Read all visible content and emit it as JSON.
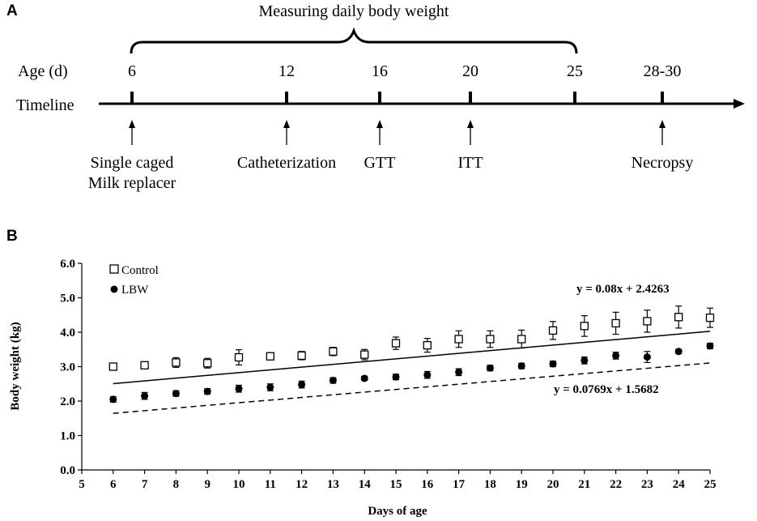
{
  "panel_a": {
    "label": "A",
    "bracket_title": "Measuring daily body weight",
    "row_age_label": "Age (d)",
    "row_timeline_label": "Timeline",
    "ages": [
      "6",
      "12",
      "16",
      "20",
      "25",
      "28-30"
    ],
    "events": [
      {
        "age": "6",
        "lines": [
          "Single caged",
          "Milk replacer"
        ]
      },
      {
        "age": "12",
        "lines": [
          "Catheterization"
        ]
      },
      {
        "age": "16",
        "lines": [
          "GTT"
        ]
      },
      {
        "age": "20",
        "lines": [
          "ITT"
        ]
      },
      {
        "age": "28-30",
        "lines": [
          "Necropsy"
        ]
      }
    ]
  },
  "chart_data": {
    "type": "scatter",
    "panel_label": "B",
    "xlabel": "Days of age",
    "ylabel": "Body weight (kg)",
    "xlim": [
      5,
      25
    ],
    "ylim": [
      0,
      6
    ],
    "xticks": [
      "5",
      "6",
      "7",
      "8",
      "9",
      "10",
      "11",
      "12",
      "13",
      "14",
      "15",
      "16",
      "17",
      "18",
      "19",
      "20",
      "21",
      "22",
      "23",
      "24",
      "25"
    ],
    "yticks": [
      "0.0",
      "1.0",
      "2.0",
      "3.0",
      "4.0",
      "5.0",
      "6.0"
    ],
    "grid": false,
    "legend_position": "top-left",
    "x": [
      6,
      7,
      8,
      9,
      10,
      11,
      12,
      13,
      14,
      15,
      16,
      17,
      18,
      19,
      20,
      21,
      22,
      23,
      24,
      25
    ],
    "series": [
      {
        "name": "Control",
        "marker": "open-square",
        "values": [
          3.0,
          3.04,
          3.12,
          3.1,
          3.27,
          3.3,
          3.32,
          3.44,
          3.35,
          3.68,
          3.62,
          3.8,
          3.8,
          3.8,
          4.05,
          4.18,
          4.26,
          4.32,
          4.44,
          4.42
        ],
        "errors": [
          0.08,
          0.1,
          0.14,
          0.14,
          0.22,
          0.1,
          0.12,
          0.12,
          0.15,
          0.18,
          0.2,
          0.24,
          0.24,
          0.26,
          0.26,
          0.3,
          0.32,
          0.32,
          0.32,
          0.28
        ],
        "fit": {
          "slope": 0.08,
          "intercept": 2.4263,
          "line": "solid",
          "label": "y = 0.08x + 2.4263"
        }
      },
      {
        "name": "LBW",
        "marker": "filled-circle",
        "values": [
          2.05,
          2.15,
          2.22,
          2.28,
          2.36,
          2.4,
          2.48,
          2.6,
          2.66,
          2.7,
          2.76,
          2.84,
          2.96,
          3.02,
          3.08,
          3.18,
          3.32,
          3.28,
          3.44,
          3.6
        ],
        "errors": [
          0.08,
          0.1,
          0.08,
          0.08,
          0.1,
          0.1,
          0.1,
          0.08,
          0.06,
          0.08,
          0.1,
          0.1,
          0.08,
          0.08,
          0.08,
          0.1,
          0.1,
          0.16,
          0.06,
          0.08
        ],
        "fit": {
          "slope": 0.0769,
          "intercept": 1.5682,
          "line": "dashed",
          "label": "y = 0.0769x + 1.5682"
        }
      }
    ]
  }
}
